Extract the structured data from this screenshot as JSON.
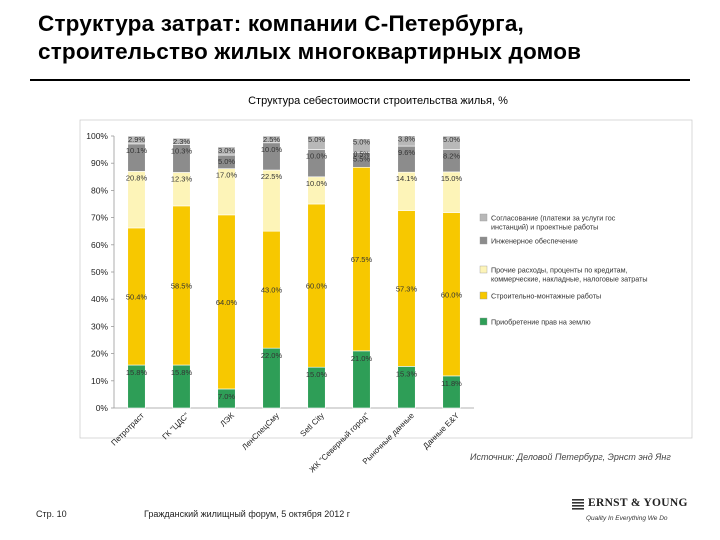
{
  "header": {
    "title_line1": "Структура затрат: компании С-Петербурга,",
    "title_line2": "строительство жилых многоквартирных домов"
  },
  "footer": {
    "source": "Источник: Деловой Петербург, Эрнст энд Янг",
    "page": "Стр. 10",
    "event": "Гражданский жилищный форум, 5 октября 2012 г",
    "logo_name": "ERNST & YOUNG",
    "logo_tagline": "Quality In Everything We Do"
  },
  "colors": {
    "land": "#2e9e57",
    "construction": "#f7c800",
    "other": "#fdf4b8",
    "engineering": "#8c8c8c",
    "approvals": "#b8b8b8",
    "border": "#9a9a9a"
  },
  "chart_data": {
    "type": "bar",
    "stacked": true,
    "title": "Структура себестоимости строительства жилья, %",
    "ylim": [
      0,
      100
    ],
    "yticks": [
      "0%",
      "10%",
      "20%",
      "30%",
      "40%",
      "50%",
      "60%",
      "70%",
      "80%",
      "90%",
      "100%"
    ],
    "categories": [
      "Петротраст",
      "ГК \"ЦДС\"",
      "ЛЭК",
      "ЛенСпецСму",
      "Setl City",
      "ЖК \"Северный город\"",
      "Рыночные данные",
      "Данные E&Y"
    ],
    "series": [
      {
        "name": "Приобретение прав на землю",
        "color_key": "land",
        "values": [
          15.8,
          15.8,
          7.0,
          22.0,
          15.0,
          21.0,
          15.3,
          11.8
        ],
        "labels": [
          "15.8%",
          "15.8%",
          "7.0%",
          "22.0%",
          "15.0%",
          "21.0%",
          "15.3%",
          "11.8%"
        ]
      },
      {
        "name": "Строительно-монтажные работы",
        "color_key": "construction",
        "values": [
          50.4,
          58.5,
          64.0,
          43.0,
          60.0,
          67.5,
          57.3,
          60.0
        ],
        "labels": [
          "50.4%",
          "58.5%",
          "64.0%",
          "43.0%",
          "60.0%",
          "67.5%",
          "57.3%",
          "60.0%"
        ]
      },
      {
        "name": "Прочие расходы, проценты по кредитам, коммерческие, накладные, налоговые затраты",
        "color_key": "other",
        "values": [
          20.8,
          12.3,
          17.0,
          22.5,
          10.0,
          0.0,
          14.1,
          15.0
        ],
        "labels": [
          "20.8%",
          "12.3%",
          "17.0%",
          "22.5%",
          "10.0%",
          "",
          "14.1%",
          "15.0%"
        ]
      },
      {
        "name": "Инженерное обеспечение",
        "color_key": "engineering",
        "values": [
          10.1,
          10.3,
          5.0,
          10.0,
          10.0,
          5.5,
          9.6,
          8.2
        ],
        "labels": [
          "10.1%",
          "10.3%",
          "5.0%",
          "10.0%",
          "10.0%",
          "5.5%",
          "9.6%",
          "8.2%"
        ]
      },
      {
        "name": "Согласование (платежи за услуги гос инстанций) и проектные работы",
        "color_key": "approvals",
        "values": [
          2.9,
          2.3,
          3.0,
          2.5,
          5.0,
          5.0,
          3.8,
          5.0
        ],
        "labels": [
          "2.9%",
          "2.3%",
          "3.0%",
          "2.5%",
          "5.0%",
          "5.0%",
          "3.8%",
          "5.0%"
        ]
      }
    ],
    "extra_labels": [
      {
        "category_index": 5,
        "text": "0.5%"
      }
    ],
    "legend_position": "right",
    "legend_order": [
      4,
      3,
      2,
      1,
      0
    ]
  }
}
